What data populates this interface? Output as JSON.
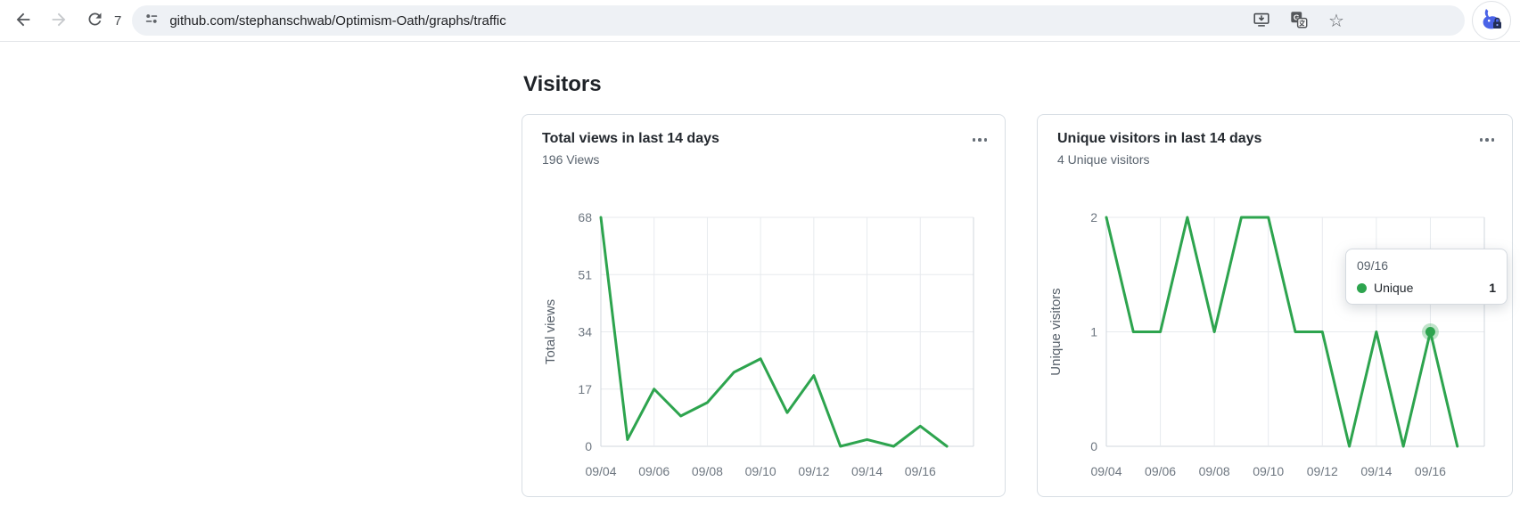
{
  "browser": {
    "url": "github.com/stephanschwab/Optimism-Oath/graphs/traffic",
    "reload_count": "7",
    "icons": {
      "back": "back-arrow-icon",
      "forward": "forward-arrow-icon",
      "reload": "reload-icon",
      "site_info": "site-settings-icon",
      "install": "install-app-icon",
      "translate": "translate-icon",
      "bookmark": "bookmark-star-icon",
      "profile": "rabbit-lock-extension-icon"
    }
  },
  "page": {
    "heading": "Visitors"
  },
  "chart_data": [
    {
      "type": "line",
      "title": "Total views in last 14 days",
      "subtitle": "196 Views",
      "ylabel": "Total views",
      "x": [
        "09/04",
        "09/05",
        "09/06",
        "09/07",
        "09/08",
        "09/09",
        "09/10",
        "09/11",
        "09/12",
        "09/13",
        "09/14",
        "09/15",
        "09/16",
        "09/17"
      ],
      "x_tick_labels": [
        "09/04",
        "09/06",
        "09/08",
        "09/10",
        "09/12",
        "09/14",
        "09/16"
      ],
      "values": [
        68,
        2,
        17,
        9,
        13,
        22,
        26,
        10,
        21,
        0,
        2,
        0,
        6,
        0
      ],
      "yticks": [
        0,
        17,
        34,
        51,
        68
      ],
      "ylim": [
        0,
        68
      ],
      "line_color": "#2da44e",
      "grid": true,
      "legend": "none"
    },
    {
      "type": "line",
      "title": "Unique visitors in last 14 days",
      "subtitle": "4 Unique visitors",
      "ylabel": "Unique visitors",
      "x": [
        "09/04",
        "09/05",
        "09/06",
        "09/07",
        "09/08",
        "09/09",
        "09/10",
        "09/11",
        "09/12",
        "09/13",
        "09/14",
        "09/15",
        "09/16",
        "09/17"
      ],
      "x_tick_labels": [
        "09/04",
        "09/06",
        "09/08",
        "09/10",
        "09/12",
        "09/14",
        "09/16"
      ],
      "values": [
        2,
        1,
        1,
        2,
        1,
        2,
        2,
        1,
        1,
        0,
        1,
        0,
        1,
        0
      ],
      "yticks": [
        0,
        1,
        2
      ],
      "ylim": [
        0,
        2
      ],
      "line_color": "#2da44e",
      "grid": true,
      "legend": "none",
      "highlight": {
        "index": 12,
        "value": 1
      },
      "tooltip": {
        "date": "09/16",
        "series": "Unique",
        "value": "1",
        "dot_color": "#2da44e"
      }
    }
  ]
}
